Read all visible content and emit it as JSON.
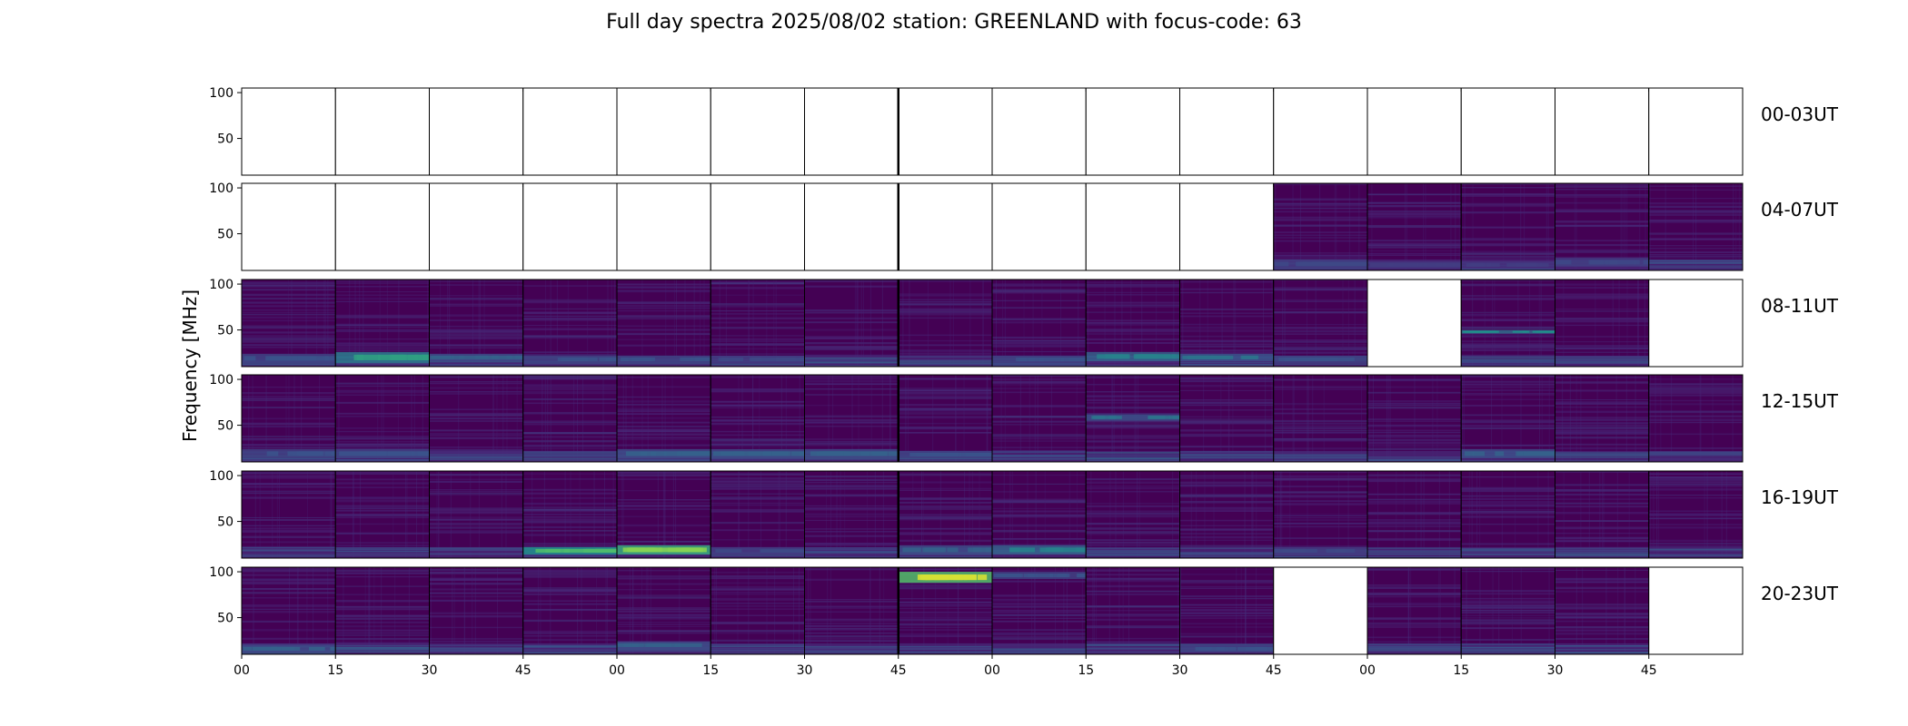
{
  "title": "Full day spectra 2025/08/02 station: GREENLAND with focus-code: 63",
  "colors": {
    "background_dark": "#440154",
    "mid": "#3b528b",
    "teal": "#21918c",
    "green": "#5ec962",
    "yellow": "#fde725",
    "empty_panel": "#ffffff",
    "axis": "#000000"
  },
  "chart_data": {
    "type": "heatmap",
    "title": "Full day spectra 2025/08/02 station: GREENLAND with focus-code: 63",
    "ylabel": "Frequency [MHz]",
    "xlabel": "",
    "ylim": [
      10,
      105
    ],
    "y_ticks": [
      "100",
      "50"
    ],
    "x_ticks": [
      "00",
      "15",
      "30",
      "45",
      "00",
      "15",
      "30",
      "45",
      "00",
      "15",
      "30",
      "45",
      "00",
      "15",
      "30",
      "45"
    ],
    "panels_per_row": 16,
    "panel_minutes": 15,
    "rows": [
      {
        "label": "00-03UT",
        "data": [
          0,
          0,
          0,
          0,
          0,
          0,
          0,
          0,
          0,
          0,
          0,
          0,
          0,
          0,
          0,
          0
        ]
      },
      {
        "label": "04-07UT",
        "data": [
          0,
          0,
          0,
          0,
          0,
          0,
          0,
          0,
          0,
          0,
          0,
          1,
          1,
          1,
          1,
          1
        ]
      },
      {
        "label": "08-11UT",
        "data": [
          1,
          1,
          1,
          1,
          1,
          1,
          1,
          1,
          1,
          1,
          1,
          1,
          0,
          1,
          1,
          0
        ]
      },
      {
        "label": "12-15UT",
        "data": [
          1,
          1,
          1,
          1,
          1,
          1,
          1,
          1,
          1,
          1,
          1,
          1,
          1,
          1,
          1,
          1
        ]
      },
      {
        "label": "16-19UT",
        "data": [
          1,
          1,
          1,
          1,
          1,
          1,
          1,
          1,
          1,
          1,
          1,
          1,
          1,
          1,
          1,
          1
        ]
      },
      {
        "label": "20-23UT",
        "data": [
          1,
          1,
          1,
          1,
          1,
          1,
          1,
          1,
          1,
          1,
          1,
          0,
          1,
          1,
          1,
          0
        ]
      }
    ],
    "features": [
      {
        "row": 1,
        "panel": 11,
        "fmin": 12,
        "fmax": 22,
        "level": 0.35
      },
      {
        "row": 1,
        "panel": 12,
        "fmin": 12,
        "fmax": 20,
        "level": 0.3
      },
      {
        "row": 1,
        "panel": 13,
        "fmin": 12,
        "fmax": 20,
        "level": 0.3
      },
      {
        "row": 1,
        "panel": 14,
        "fmin": 14,
        "fmax": 24,
        "level": 0.35
      },
      {
        "row": 2,
        "panel": 0,
        "fmin": 14,
        "fmax": 24,
        "level": 0.4
      },
      {
        "row": 2,
        "panel": 1,
        "fmin": 14,
        "fmax": 26,
        "level": 0.65
      },
      {
        "row": 2,
        "panel": 2,
        "fmin": 16,
        "fmax": 24,
        "level": 0.45
      },
      {
        "row": 2,
        "panel": 3,
        "fmin": 14,
        "fmax": 22,
        "level": 0.4
      },
      {
        "row": 2,
        "panel": 4,
        "fmin": 14,
        "fmax": 22,
        "level": 0.4
      },
      {
        "row": 2,
        "panel": 5,
        "fmin": 14,
        "fmax": 22,
        "level": 0.35
      },
      {
        "row": 2,
        "panel": 8,
        "fmin": 14,
        "fmax": 22,
        "level": 0.4
      },
      {
        "row": 2,
        "panel": 9,
        "fmin": 16,
        "fmax": 26,
        "level": 0.55
      },
      {
        "row": 2,
        "panel": 10,
        "fmin": 16,
        "fmax": 24,
        "level": 0.5
      },
      {
        "row": 2,
        "panel": 11,
        "fmin": 14,
        "fmax": 22,
        "level": 0.4
      },
      {
        "row": 2,
        "panel": 13,
        "fmin": 46,
        "fmax": 50,
        "level": 0.6
      },
      {
        "row": 3,
        "panel": 0,
        "fmin": 14,
        "fmax": 24,
        "level": 0.4
      },
      {
        "row": 3,
        "panel": 1,
        "fmin": 14,
        "fmax": 24,
        "level": 0.4
      },
      {
        "row": 3,
        "panel": 4,
        "fmin": 14,
        "fmax": 24,
        "level": 0.45
      },
      {
        "row": 3,
        "panel": 5,
        "fmin": 14,
        "fmax": 24,
        "level": 0.45
      },
      {
        "row": 3,
        "panel": 6,
        "fmin": 14,
        "fmax": 24,
        "level": 0.45
      },
      {
        "row": 3,
        "panel": 7,
        "fmin": 14,
        "fmax": 22,
        "level": 0.4
      },
      {
        "row": 3,
        "panel": 9,
        "fmin": 55,
        "fmax": 62,
        "level": 0.5
      },
      {
        "row": 3,
        "panel": 13,
        "fmin": 14,
        "fmax": 24,
        "level": 0.45
      },
      {
        "row": 4,
        "panel": 3,
        "fmin": 14,
        "fmax": 22,
        "level": 0.75
      },
      {
        "row": 4,
        "panel": 4,
        "fmin": 14,
        "fmax": 24,
        "level": 0.85
      },
      {
        "row": 4,
        "panel": 5,
        "fmin": 14,
        "fmax": 22,
        "level": 0.35
      },
      {
        "row": 4,
        "panel": 7,
        "fmin": 14,
        "fmax": 24,
        "level": 0.45
      },
      {
        "row": 4,
        "panel": 8,
        "fmin": 14,
        "fmax": 24,
        "level": 0.55
      },
      {
        "row": 4,
        "panel": 11,
        "fmin": 14,
        "fmax": 22,
        "level": 0.35
      },
      {
        "row": 5,
        "panel": 0,
        "fmin": 12,
        "fmax": 20,
        "level": 0.45
      },
      {
        "row": 5,
        "panel": 4,
        "fmin": 16,
        "fmax": 24,
        "level": 0.45
      },
      {
        "row": 5,
        "panel": 7,
        "fmin": 88,
        "fmax": 100,
        "level": 0.95
      },
      {
        "row": 5,
        "panel": 8,
        "fmin": 92,
        "fmax": 100,
        "level": 0.4
      },
      {
        "row": 5,
        "panel": 10,
        "fmin": 12,
        "fmax": 20,
        "level": 0.4
      }
    ]
  }
}
